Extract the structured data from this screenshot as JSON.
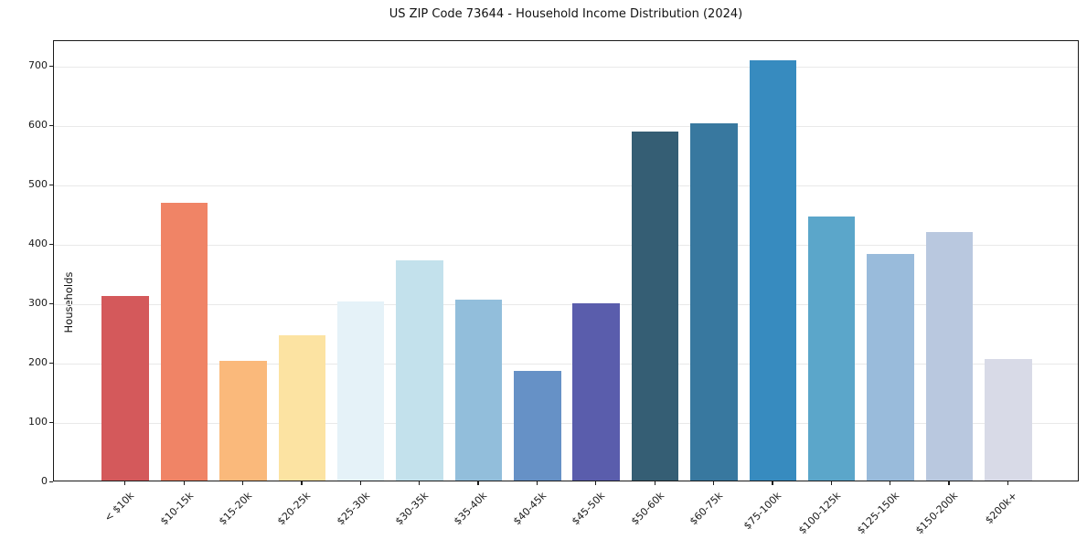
{
  "chart_data": {
    "type": "bar",
    "title": "US ZIP Code 73644 - Household Income Distribution (2024)",
    "xlabel": "",
    "ylabel": "Households",
    "categories": [
      "< $10k",
      "$10-15k",
      "$15-20k",
      "$20-25k",
      "$25-30k",
      "$30-35k",
      "$35-40k",
      "$40-45k",
      "$45-50k",
      "$50-60k",
      "$60-75k",
      "$75-100k",
      "$100-125k",
      "$125-150k",
      "$150-200k",
      "$200k+"
    ],
    "values": [
      310,
      467,
      201,
      245,
      302,
      370,
      304,
      185,
      299,
      587,
      602,
      707,
      444,
      382,
      418,
      205
    ],
    "bar_colors": [
      "#d4595b",
      "#f08466",
      "#fab97b",
      "#fce3a2",
      "#e5f2f8",
      "#c3e1ec",
      "#92bedb",
      "#6691c6",
      "#5a5dac",
      "#355e74",
      "#38789f",
      "#378bbf",
      "#5ba6ca",
      "#99bbdb",
      "#b9c8df",
      "#d8dae7"
    ],
    "yticks": [
      0,
      100,
      200,
      300,
      400,
      500,
      600,
      700
    ],
    "ylim": [
      0,
      743
    ],
    "xtick_rotation_deg": 45,
    "grid": "horizontal",
    "grid_color": "#e9e9e9",
    "frame_color": "#1a1a1a",
    "background": "#ffffff",
    "legend": "none"
  }
}
